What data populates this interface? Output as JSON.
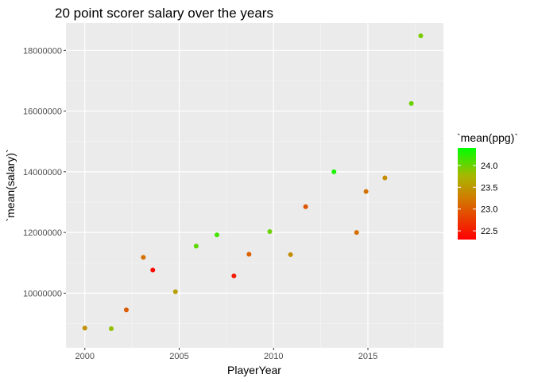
{
  "chart_data": {
    "type": "scatter",
    "title": "20 point scorer salary over the years",
    "xlabel": "PlayerYear",
    "ylabel": "`mean(salary)`",
    "xlim": [
      1999,
      2019
    ],
    "ylim": [
      8200000,
      18900000
    ],
    "x_ticks": [
      2000,
      2005,
      2010,
      2015
    ],
    "x_tick_labels": [
      "2000",
      "2005",
      "2010",
      "2015"
    ],
    "y_ticks": [
      10000000,
      12000000,
      14000000,
      16000000,
      18000000
    ],
    "y_tick_labels": [
      "10000000",
      "12000000",
      "14000000",
      "16000000",
      "18000000"
    ],
    "grid": true,
    "color_legend": {
      "title": "`mean(ppg)`",
      "position": "right",
      "range": [
        22.3,
        24.4
      ],
      "low_color": "#ff0000",
      "high_color": "#00ff00",
      "ticks": [
        22.5,
        23.0,
        23.5,
        24.0
      ],
      "tick_labels": [
        "22.5",
        "23.0",
        "23.5",
        "24.0"
      ]
    },
    "points": [
      {
        "x": 2000.0,
        "y": 8850000,
        "color_value": 23.45
      },
      {
        "x": 2001.4,
        "y": 8830000,
        "color_value": 23.85
      },
      {
        "x": 2002.2,
        "y": 9450000,
        "color_value": 23.0
      },
      {
        "x": 2003.1,
        "y": 11180000,
        "color_value": 23.15
      },
      {
        "x": 2003.6,
        "y": 10760000,
        "color_value": 22.35
      },
      {
        "x": 2004.8,
        "y": 10050000,
        "color_value": 23.55
      },
      {
        "x": 2005.9,
        "y": 11550000,
        "color_value": 24.05
      },
      {
        "x": 2007.0,
        "y": 11920000,
        "color_value": 24.15
      },
      {
        "x": 2007.9,
        "y": 10570000,
        "color_value": 22.5
      },
      {
        "x": 2008.7,
        "y": 11280000,
        "color_value": 23.05
      },
      {
        "x": 2009.8,
        "y": 12030000,
        "color_value": 24.0
      },
      {
        "x": 2010.9,
        "y": 11270000,
        "color_value": 23.4
      },
      {
        "x": 2011.7,
        "y": 12850000,
        "color_value": 22.95
      },
      {
        "x": 2013.2,
        "y": 14000000,
        "color_value": 24.3
      },
      {
        "x": 2014.4,
        "y": 12000000,
        "color_value": 23.15
      },
      {
        "x": 2014.9,
        "y": 13350000,
        "color_value": 23.2
      },
      {
        "x": 2015.9,
        "y": 13800000,
        "color_value": 23.4
      },
      {
        "x": 2017.3,
        "y": 16250000,
        "color_value": 24.0
      },
      {
        "x": 2017.8,
        "y": 18480000,
        "color_value": 23.95
      }
    ]
  }
}
